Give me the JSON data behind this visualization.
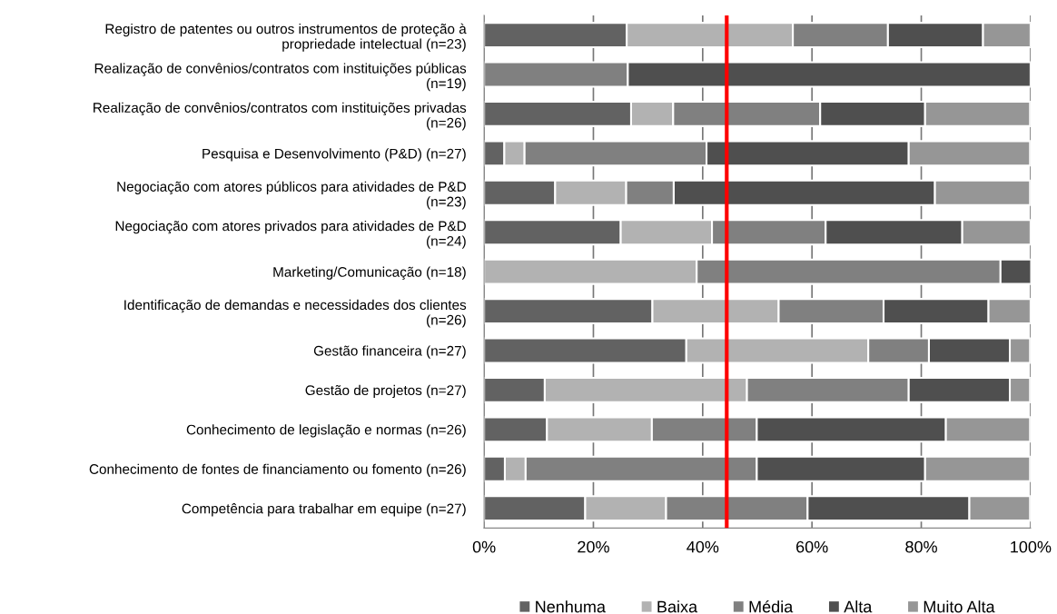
{
  "chart_data": {
    "type": "bar",
    "orientation": "horizontal",
    "stacked": true,
    "categories": [
      "Registro de patentes ou outros instrumentos de proteção à\npropriedade intelectual (n=23)",
      "Realização de convênios/contratos com instituições públicas\n(n=19)",
      "Realização de convênios/contratos com instituições privadas\n(n=26)",
      "Pesquisa e Desenvolvimento (P&D) (n=27)",
      "Negociação com atores públicos para atividades de P&D\n(n=23)",
      "Negociação com atores privados para atividades de P&D\n(n=24)",
      "Marketing/Comunicação (n=18)",
      "Identificação de demandas e necessidades dos clientes\n(n=26)",
      "Gestão financeira (n=27)",
      "Gestão de projetos (n=27)",
      "Conhecimento de legislação e normas (n=26)",
      "Conhecimento de fontes de financiamento ou fomento (n=26)",
      "Competência para trabalhar em equipe (n=27)"
    ],
    "series": [
      {
        "name": "Nenhuma",
        "color": "#626262",
        "values": [
          26.1,
          0,
          26.9,
          3.7,
          13.0,
          25.0,
          0,
          30.8,
          37.0,
          11.1,
          11.5,
          3.8,
          18.5
        ]
      },
      {
        "name": "Baixa",
        "color": "#b2b2b2",
        "values": [
          30.4,
          0,
          7.7,
          3.7,
          13.0,
          16.7,
          38.9,
          23.1,
          33.3,
          37.0,
          19.2,
          3.8,
          14.8
        ]
      },
      {
        "name": "Média",
        "color": "#808080",
        "values": [
          17.4,
          26.3,
          26.9,
          33.3,
          8.7,
          20.8,
          55.6,
          19.2,
          11.1,
          29.6,
          19.2,
          42.3,
          25.9
        ]
      },
      {
        "name": "Alta",
        "color": "#4f4f4f",
        "values": [
          17.4,
          73.7,
          19.2,
          37.0,
          47.8,
          25.0,
          5.6,
          19.2,
          14.8,
          18.5,
          34.6,
          30.8,
          29.6
        ]
      },
      {
        "name": "Muito Alta",
        "color": "#969696",
        "values": [
          8.7,
          0,
          19.2,
          22.2,
          17.4,
          12.5,
          0,
          7.7,
          3.7,
          3.7,
          15.4,
          19.2,
          11.1
        ]
      }
    ],
    "xlim": [
      0,
      100
    ],
    "xticks": [
      {
        "value": 0,
        "label": "0%"
      },
      {
        "value": 20,
        "label": "20%"
      },
      {
        "value": 40,
        "label": "40%"
      },
      {
        "value": 60,
        "label": "60%"
      },
      {
        "value": 80,
        "label": "80%"
      },
      {
        "value": 100,
        "label": "100%"
      }
    ],
    "ref_lines": [
      {
        "axis": "x",
        "value": 44.4,
        "color": "#ff0000"
      }
    ],
    "grid": "x",
    "legend": "bottom"
  }
}
